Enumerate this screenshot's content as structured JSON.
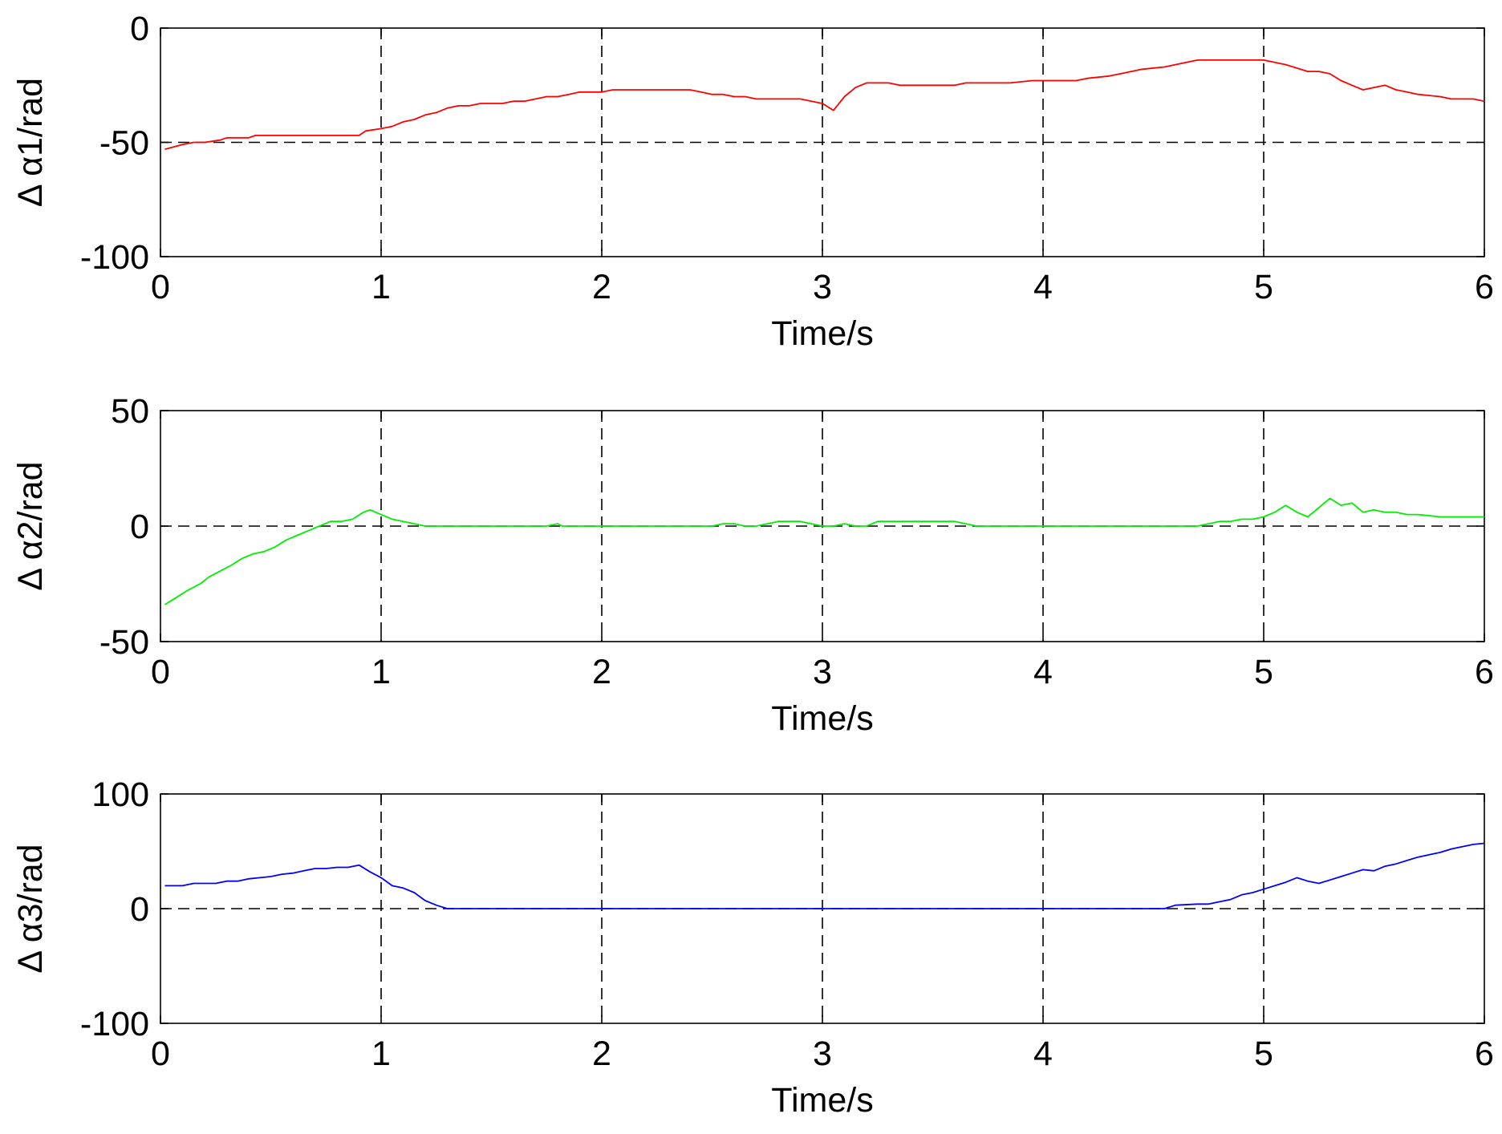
{
  "chart_data": [
    {
      "type": "line",
      "xlabel": "Time/s",
      "ylabel": "Δ  α1/rad",
      "xlim": [
        0,
        6
      ],
      "ylim": [
        -100,
        0
      ],
      "xticks": [
        "0",
        "1",
        "2",
        "3",
        "4",
        "5",
        "6"
      ],
      "yticks": [
        "0",
        "-50",
        "-100"
      ],
      "ytick_values": [
        0,
        -50,
        -100
      ],
      "grid": "dashed vertical at x ticks",
      "reference_line": -50,
      "series": [
        {
          "color": "#ff0000",
          "x": [
            0.02,
            0.1,
            0.15,
            0.2,
            0.27,
            0.3,
            0.4,
            0.43,
            0.5,
            0.6,
            0.7,
            0.8,
            0.9,
            0.93,
            1.0,
            1.05,
            1.1,
            1.15,
            1.2,
            1.25,
            1.3,
            1.35,
            1.4,
            1.45,
            1.55,
            1.6,
            1.65,
            1.7,
            1.75,
            1.8,
            1.85,
            1.9,
            2.0,
            2.05,
            2.3,
            2.4,
            2.45,
            2.5,
            2.55,
            2.6,
            2.65,
            2.7,
            2.75,
            2.8,
            2.9,
            2.95,
            3.0,
            3.05,
            3.1,
            3.15,
            3.2,
            3.25,
            3.3,
            3.35,
            3.4,
            3.5,
            3.6,
            3.65,
            3.7,
            3.8,
            3.85,
            3.95,
            4.0,
            4.1,
            4.15,
            4.2,
            4.3,
            4.35,
            4.4,
            4.45,
            4.55,
            4.6,
            4.65,
            4.7,
            4.75,
            4.85,
            4.9,
            4.95,
            5.0,
            5.05,
            5.1,
            5.2,
            5.25,
            5.3,
            5.35,
            5.4,
            5.45,
            5.5,
            5.55,
            5.6,
            5.65,
            5.7,
            5.8,
            5.85,
            5.95,
            6.0
          ],
          "y": [
            -53,
            -51,
            -50,
            -50,
            -49,
            -48,
            -48,
            -47,
            -47,
            -47,
            -47,
            -47,
            -47,
            -45,
            -44,
            -43,
            -41,
            -40,
            -38,
            -37,
            -35,
            -34,
            -34,
            -33,
            -33,
            -32,
            -32,
            -31,
            -30,
            -30,
            -29,
            -28,
            -28,
            -27,
            -27,
            -27,
            -28,
            -29,
            -29,
            -30,
            -30,
            -31,
            -31,
            -31,
            -31,
            -32,
            -33,
            -36,
            -30,
            -26,
            -24,
            -24,
            -24,
            -25,
            -25,
            -25,
            -25,
            -24,
            -24,
            -24,
            -24,
            -23,
            -23,
            -23,
            -23,
            -22,
            -21,
            -20,
            -19,
            -18,
            -17,
            -16,
            -15,
            -14,
            -14,
            -14,
            -14,
            -14,
            -14,
            -15,
            -16,
            -19,
            -19,
            -20,
            -23,
            -25,
            -27,
            -26,
            -25,
            -27,
            -28,
            -29,
            -30,
            -31,
            -31,
            -32
          ]
        }
      ]
    },
    {
      "type": "line",
      "xlabel": "Time/s",
      "ylabel": "Δ  α2/rad",
      "xlim": [
        0,
        6
      ],
      "ylim": [
        -50,
        50
      ],
      "xticks": [
        "0",
        "1",
        "2",
        "3",
        "4",
        "5",
        "6"
      ],
      "yticks": [
        "50",
        "0",
        "-50"
      ],
      "ytick_values": [
        50,
        0,
        -50
      ],
      "grid": "dashed vertical at x ticks",
      "reference_line": 0,
      "series": [
        {
          "color": "#00ee00",
          "x": [
            0.02,
            0.07,
            0.12,
            0.18,
            0.22,
            0.28,
            0.32,
            0.37,
            0.42,
            0.47,
            0.52,
            0.57,
            0.62,
            0.67,
            0.72,
            0.77,
            0.82,
            0.87,
            0.92,
            0.95,
            1.0,
            1.05,
            1.1,
            1.15,
            1.2,
            1.3,
            1.7,
            1.75,
            1.8,
            1.82,
            2.5,
            2.55,
            2.6,
            2.65,
            2.7,
            2.75,
            2.8,
            2.9,
            2.95,
            3.0,
            3.05,
            3.1,
            3.15,
            3.2,
            3.25,
            3.3,
            3.6,
            3.65,
            3.7,
            4.7,
            4.75,
            4.8,
            4.85,
            4.9,
            4.95,
            5.0,
            5.05,
            5.1,
            5.15,
            5.2,
            5.25,
            5.3,
            5.35,
            5.4,
            5.45,
            5.5,
            5.55,
            5.6,
            5.65,
            5.7,
            5.8,
            6.0
          ],
          "y": [
            -34,
            -31,
            -28,
            -25,
            -22,
            -19,
            -17,
            -14,
            -12,
            -11,
            -9,
            -6,
            -4,
            -2,
            0,
            2,
            2,
            3,
            6,
            7,
            5,
            3,
            2,
            1,
            0,
            0,
            0,
            0,
            1,
            0,
            0,
            1,
            1,
            0,
            0,
            1,
            2,
            2,
            1,
            0,
            0,
            1,
            0,
            0,
            2,
            2,
            2,
            1,
            0,
            0,
            1,
            2,
            2,
            3,
            3,
            4,
            6,
            9,
            6,
            4,
            8,
            12,
            9,
            10,
            6,
            7,
            6,
            6,
            5,
            5,
            4,
            4
          ]
        }
      ]
    },
    {
      "type": "line",
      "xlabel": "Time/s",
      "ylabel": "Δ  α3/rad",
      "xlim": [
        0,
        6
      ],
      "ylim": [
        -100,
        100
      ],
      "xticks": [
        "0",
        "1",
        "2",
        "3",
        "4",
        "5",
        "6"
      ],
      "yticks": [
        "100",
        "0",
        "-100"
      ],
      "ytick_values": [
        100,
        0,
        -100
      ],
      "grid": "dashed vertical at x ticks",
      "reference_line": 0,
      "series": [
        {
          "color": "#0000ff",
          "x": [
            0.02,
            0.1,
            0.15,
            0.25,
            0.3,
            0.35,
            0.4,
            0.45,
            0.5,
            0.55,
            0.6,
            0.65,
            0.7,
            0.75,
            0.8,
            0.85,
            0.9,
            0.95,
            1.0,
            1.05,
            1.1,
            1.15,
            1.2,
            1.25,
            1.3,
            1.35,
            4.5,
            4.55,
            4.6,
            4.7,
            4.75,
            4.8,
            4.85,
            4.9,
            4.95,
            5.0,
            5.05,
            5.1,
            5.15,
            5.2,
            5.25,
            5.3,
            5.35,
            5.4,
            5.45,
            5.5,
            5.55,
            5.6,
            5.65,
            5.7,
            5.75,
            5.8,
            5.85,
            5.9,
            5.95,
            6.0
          ],
          "y": [
            20,
            20,
            22,
            22,
            24,
            24,
            26,
            27,
            28,
            30,
            31,
            33,
            35,
            35,
            36,
            36,
            38,
            32,
            27,
            20,
            18,
            14,
            7,
            3,
            0,
            0,
            0,
            0,
            3,
            4,
            4,
            6,
            8,
            12,
            14,
            17,
            20,
            23,
            27,
            24,
            22,
            25,
            28,
            31,
            34,
            33,
            37,
            39,
            42,
            45,
            47,
            49,
            52,
            54,
            56,
            57
          ]
        }
      ]
    }
  ]
}
